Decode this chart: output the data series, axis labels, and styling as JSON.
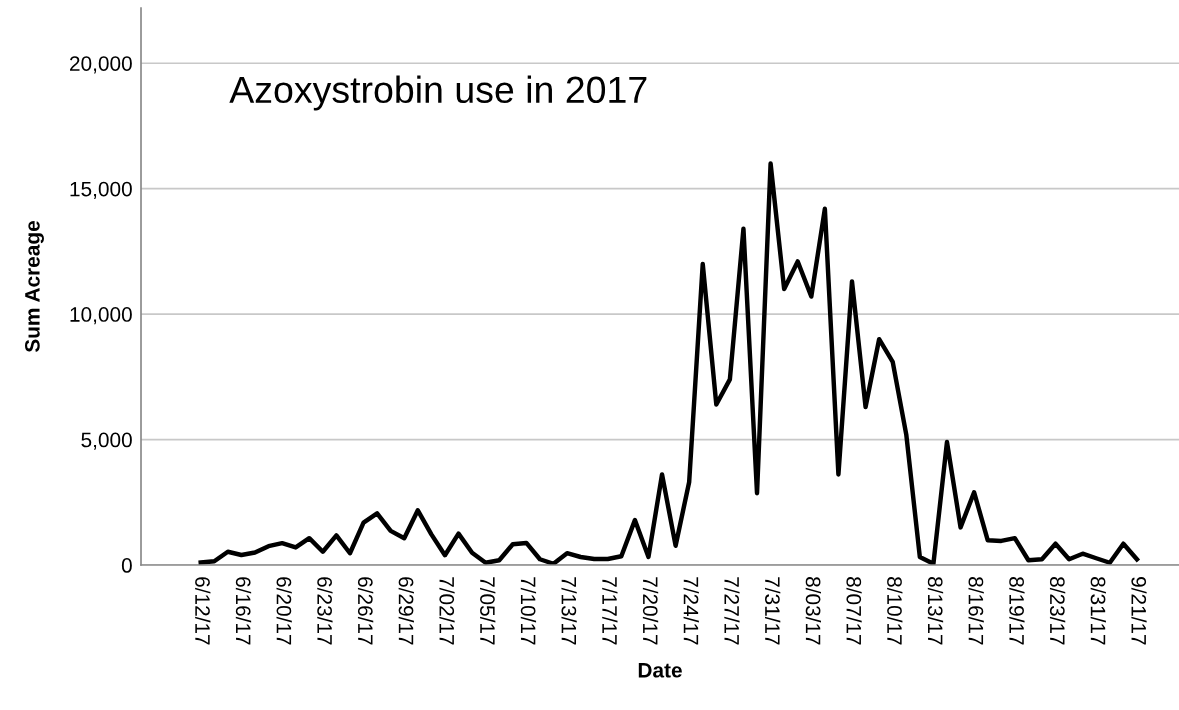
{
  "chart_data": {
    "type": "line",
    "xlabel": "Date",
    "ylabel": "Sum Acreage",
    "annotations": [
      "Azoxystrobin use in 2017"
    ],
    "categories": [
      "6/12/17",
      null,
      null,
      "6/16/17",
      null,
      null,
      "6/20/17",
      null,
      null,
      "6/23/17",
      null,
      null,
      "6/26/17",
      null,
      null,
      "6/29/17",
      null,
      null,
      "7/02/17",
      null,
      null,
      "7/05/17",
      null,
      null,
      "7/10/17",
      null,
      null,
      "7/13/17",
      null,
      null,
      "7/17/17",
      null,
      null,
      "7/20/17",
      null,
      null,
      "7/24/17",
      null,
      null,
      "7/27/17",
      null,
      null,
      "7/31/17",
      null,
      null,
      "8/03/17",
      null,
      null,
      "8/07/17",
      null,
      null,
      "8/10/17",
      null,
      null,
      "8/13/17",
      null,
      null,
      "8/16/17",
      null,
      null,
      "8/19/17",
      null,
      null,
      "8/23/17",
      null,
      null,
      "8/31/17",
      null,
      null,
      "9/21/17"
    ],
    "series": [
      {
        "color": "#000000",
        "values": [
          100,
          150,
          530,
          400,
          500,
          750,
          870,
          700,
          1070,
          530,
          1180,
          470,
          1690,
          2060,
          1360,
          1070,
          2180,
          1220,
          390,
          1250,
          490,
          90,
          190,
          830,
          880,
          230,
          50,
          470,
          320,
          240,
          240,
          350,
          1790,
          320,
          3610,
          770,
          3310,
          12000,
          6400,
          7400,
          13400,
          2860,
          16000,
          11000,
          12100,
          10700,
          14200,
          3610,
          11300,
          6300,
          9000,
          8100,
          5200,
          320,
          50,
          4900,
          1500,
          2900,
          990,
          960,
          1070,
          190,
          230,
          850,
          230,
          450,
          270,
          90,
          850,
          230
        ]
      }
    ],
    "ylim": [
      0,
      22200
    ],
    "yticks": [
      {
        "value": 0,
        "label": "0"
      },
      {
        "value": 5000,
        "label": "5,000"
      },
      {
        "value": 10000,
        "label": "10,000"
      },
      {
        "value": 15000,
        "label": "15,000"
      },
      {
        "value": 20000,
        "label": "20,000"
      }
    ],
    "grid": "y",
    "legend": false,
    "marker": "none",
    "line_style": "solid"
  }
}
